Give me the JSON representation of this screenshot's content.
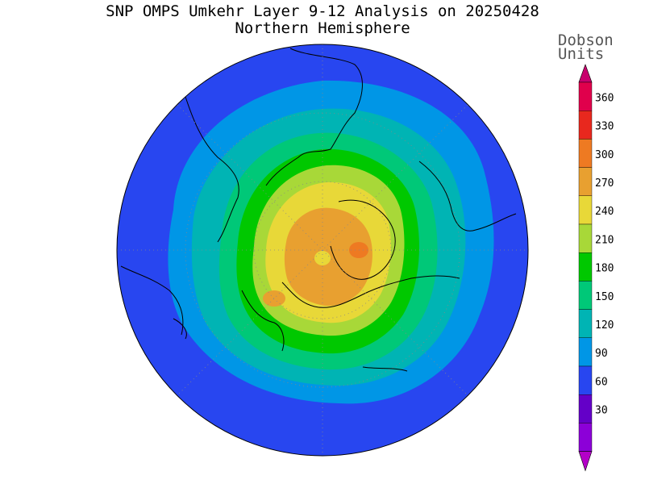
{
  "title": {
    "line1": "SNP OMPS Umkehr Layer 9-12 Analysis on 20250428",
    "line2": "Northern Hemisphere"
  },
  "units": {
    "line1": "Dobson",
    "line2": "Units"
  },
  "colorbar": {
    "labels": [
      "360",
      "330",
      "300",
      "270",
      "240",
      "210",
      "180",
      "150",
      "120",
      "90",
      "60",
      "30"
    ],
    "colors": [
      "#e0004c",
      "#e8281e",
      "#ee7a22",
      "#e8a030",
      "#e8d838",
      "#a8d838",
      "#00c800",
      "#00c878",
      "#00b4b4",
      "#0096e6",
      "#2846f0",
      "#6400c8",
      "#8c00d8"
    ],
    "top_arrow_color": "#c8006e",
    "bottom_arrow_color": "#b400c8"
  },
  "map": {
    "projection": "north-polar-stereographic",
    "ocean_outline": "#000000",
    "land_outline": "#000000",
    "grid": "dotted"
  }
}
